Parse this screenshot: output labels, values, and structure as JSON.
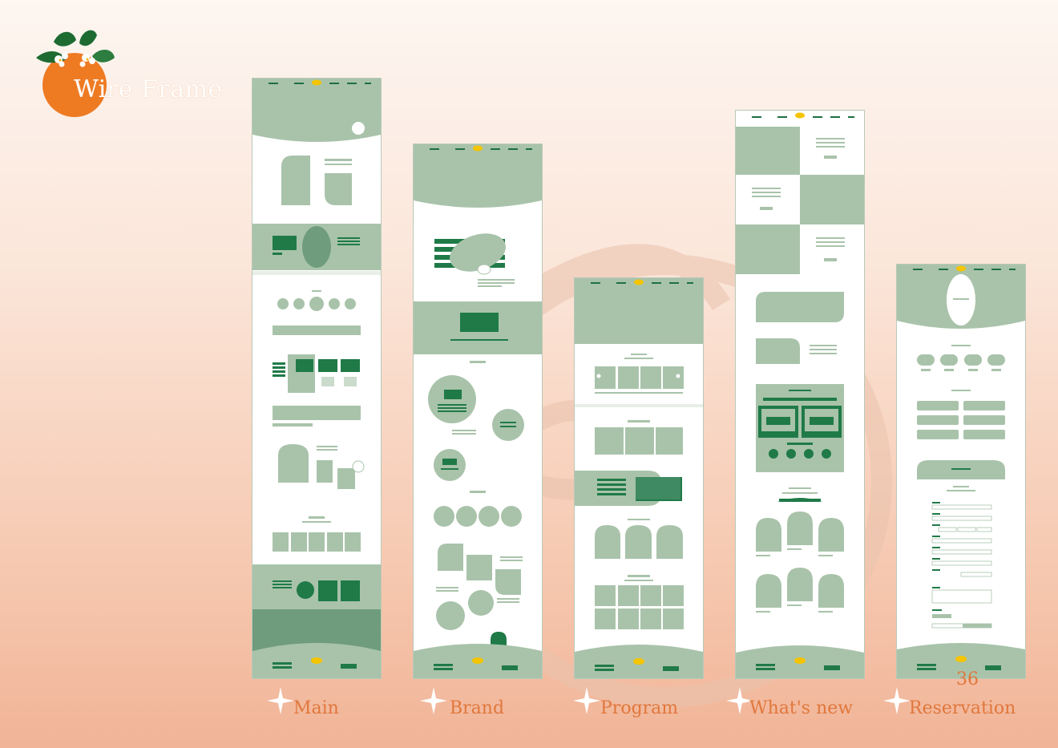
{
  "title": "Wire Frame",
  "page_number": "36",
  "colors": {
    "accent": "#e0773c",
    "green_light": "#a9c3aa",
    "green_mid": "#6f9c7d",
    "green_dark": "#1f7a48",
    "background": "#fbe3d5"
  },
  "icons": [
    "orange-logo-icon",
    "sparkle-star-icon"
  ],
  "frames": [
    {
      "id": "main",
      "label": "Main"
    },
    {
      "id": "brand",
      "label": "Brand"
    },
    {
      "id": "program",
      "label": "Program"
    },
    {
      "id": "whats-new",
      "label": "What's new"
    },
    {
      "id": "reservation",
      "label": "Reservation"
    }
  ]
}
